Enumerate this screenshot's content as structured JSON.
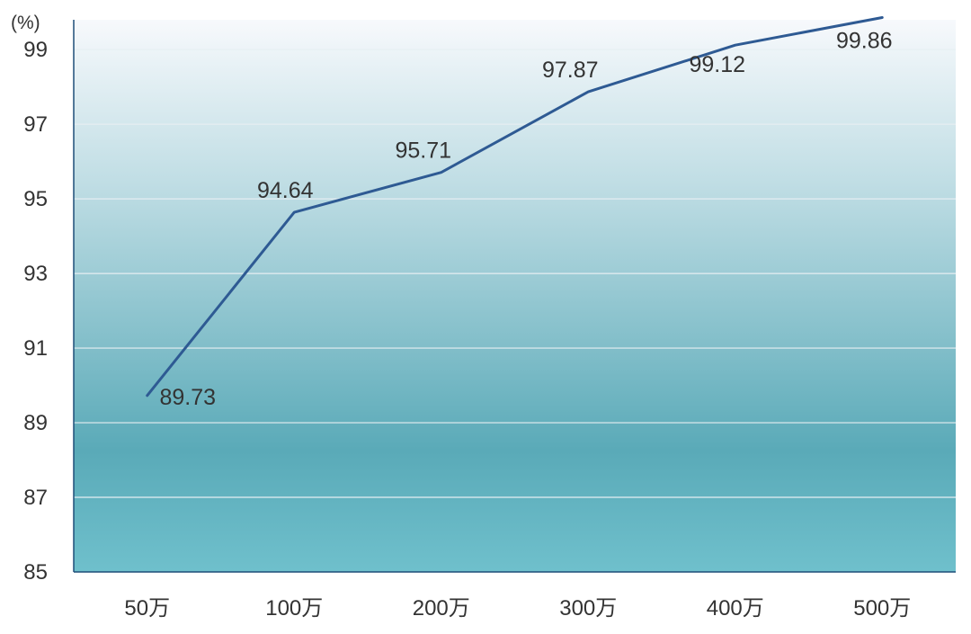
{
  "chart_data": {
    "type": "line",
    "title": "",
    "xlabel": "",
    "ylabel": "",
    "y_unit": "(%)",
    "categories": [
      "50万",
      "100万",
      "200万",
      "300万",
      "400万",
      "500万"
    ],
    "series": [
      {
        "values": [
          89.73,
          94.64,
          95.71,
          97.87,
          99.12,
          99.86
        ]
      }
    ],
    "data_labels": [
      "89.73",
      "94.64",
      "95.71",
      "97.87",
      "99.12",
      "99.86"
    ],
    "ylim": [
      85,
      99.8
    ],
    "yticks": [
      85,
      87,
      89,
      91,
      93,
      95,
      97,
      99
    ],
    "ytick_labels": [
      "85",
      "87",
      "89",
      "91",
      "93",
      "95",
      "97",
      "99"
    ],
    "grid": true,
    "legend": "none",
    "colors": {
      "line": "#2E5A93",
      "background_top": "#F7F9FC",
      "background_mid": "#5AAAB8",
      "background_bottom": "#6FC0CC",
      "gridline": "#E6EEF2",
      "axis": "#1F4E79"
    }
  }
}
